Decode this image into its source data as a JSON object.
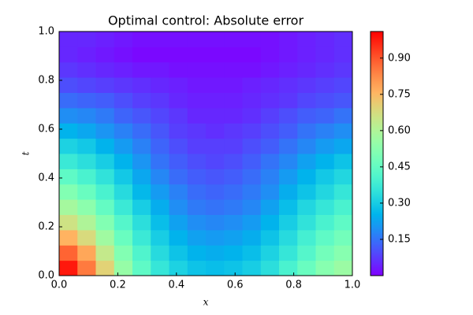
{
  "chart_data": {
    "type": "heatmap",
    "title": "Optimal control: Absolute error",
    "x_label": "x",
    "y_label": "t",
    "colormap": "rainbow",
    "xlim": [
      0,
      1
    ],
    "ylim": [
      0,
      1
    ],
    "xticks": [
      {
        "value": 0,
        "label": "0.0"
      },
      0.2,
      0.4,
      0.6,
      0.8,
      {
        "value": 1,
        "label": "1.0"
      }
    ],
    "yticks": [
      {
        "value": 0,
        "label": "0.0"
      },
      0.2,
      0.4,
      0.6,
      0.8,
      {
        "value": 1,
        "label": "1.0"
      }
    ],
    "clim": [
      0,
      1.01
    ],
    "colorbar_ticks": [
      0.15,
      {
        "value": 0.3,
        "label": "0.30"
      },
      0.45,
      {
        "value": 0.6,
        "label": "0.60"
      },
      0.75,
      {
        "value": 0.9,
        "label": "0.90"
      }
    ],
    "z": [
      [
        0.98,
        0.85,
        0.7,
        0.55,
        0.44,
        0.36,
        0.31,
        0.28,
        0.27,
        0.28,
        0.3,
        0.34,
        0.4,
        0.46,
        0.52,
        0.56
      ],
      [
        0.88,
        0.78,
        0.64,
        0.51,
        0.41,
        0.33,
        0.28,
        0.25,
        0.24,
        0.25,
        0.27,
        0.31,
        0.36,
        0.42,
        0.48,
        0.52
      ],
      [
        0.76,
        0.68,
        0.57,
        0.46,
        0.37,
        0.3,
        0.25,
        0.22,
        0.21,
        0.22,
        0.24,
        0.28,
        0.33,
        0.39,
        0.44,
        0.48
      ],
      [
        0.66,
        0.6,
        0.51,
        0.42,
        0.34,
        0.27,
        0.22,
        0.19,
        0.18,
        0.19,
        0.21,
        0.25,
        0.3,
        0.35,
        0.4,
        0.44
      ],
      [
        0.58,
        0.53,
        0.45,
        0.37,
        0.3,
        0.24,
        0.19,
        0.16,
        0.15,
        0.16,
        0.18,
        0.22,
        0.27,
        0.32,
        0.36,
        0.4
      ],
      [
        0.51,
        0.46,
        0.4,
        0.33,
        0.26,
        0.21,
        0.17,
        0.14,
        0.13,
        0.14,
        0.16,
        0.19,
        0.24,
        0.28,
        0.32,
        0.36
      ],
      [
        0.44,
        0.4,
        0.35,
        0.29,
        0.23,
        0.18,
        0.14,
        0.12,
        0.11,
        0.12,
        0.14,
        0.17,
        0.21,
        0.25,
        0.29,
        0.32
      ],
      [
        0.37,
        0.34,
        0.3,
        0.25,
        0.2,
        0.15,
        0.12,
        0.1,
        0.09,
        0.1,
        0.12,
        0.15,
        0.18,
        0.22,
        0.25,
        0.28
      ],
      [
        0.31,
        0.29,
        0.25,
        0.21,
        0.17,
        0.13,
        0.1,
        0.08,
        0.08,
        0.08,
        0.1,
        0.12,
        0.15,
        0.18,
        0.21,
        0.23
      ],
      [
        0.25,
        0.23,
        0.2,
        0.17,
        0.14,
        0.11,
        0.08,
        0.07,
        0.06,
        0.07,
        0.08,
        0.1,
        0.12,
        0.15,
        0.17,
        0.19
      ],
      [
        0.19,
        0.18,
        0.16,
        0.13,
        0.11,
        0.09,
        0.07,
        0.05,
        0.05,
        0.05,
        0.06,
        0.08,
        0.1,
        0.12,
        0.13,
        0.15
      ],
      [
        0.14,
        0.13,
        0.12,
        0.1,
        0.08,
        0.07,
        0.05,
        0.04,
        0.04,
        0.04,
        0.05,
        0.06,
        0.07,
        0.09,
        0.1,
        0.11
      ],
      [
        0.1,
        0.09,
        0.08,
        0.07,
        0.06,
        0.05,
        0.04,
        0.03,
        0.03,
        0.03,
        0.04,
        0.05,
        0.06,
        0.07,
        0.08,
        0.09
      ],
      [
        0.07,
        0.06,
        0.05,
        0.04,
        0.03,
        0.03,
        0.02,
        0.02,
        0.02,
        0.02,
        0.02,
        0.03,
        0.04,
        0.05,
        0.06,
        0.07
      ],
      [
        0.05,
        0.04,
        0.03,
        0.02,
        0.01,
        0.01,
        0.01,
        0.01,
        0.01,
        0.01,
        0.01,
        0.02,
        0.03,
        0.04,
        0.05,
        0.06
      ],
      [
        0.05,
        0.05,
        0.04,
        0.03,
        0.02,
        0.02,
        0.02,
        0.02,
        0.02,
        0.02,
        0.02,
        0.02,
        0.03,
        0.04,
        0.05,
        0.06
      ]
    ]
  }
}
